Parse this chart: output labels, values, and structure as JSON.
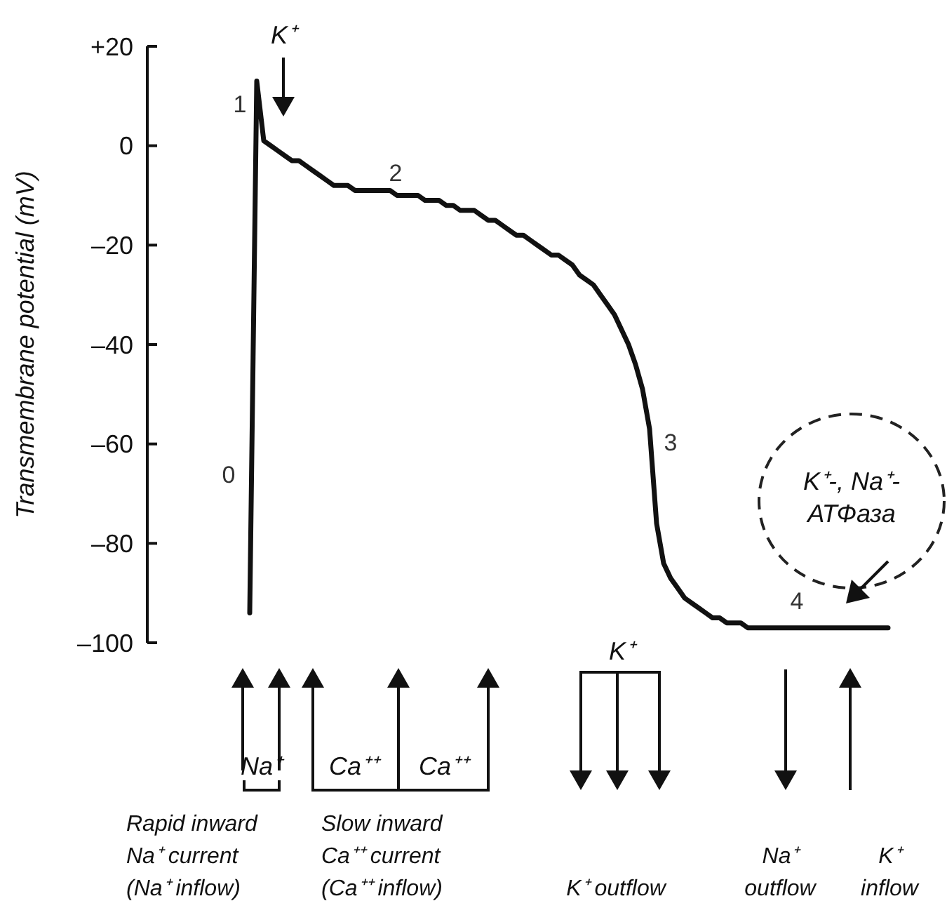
{
  "chart_data": {
    "type": "line",
    "ylabel": "Transmembrane potential (mV)",
    "ylim": [
      -100,
      20
    ],
    "yticks": [
      {
        "value": 20,
        "label": "+20"
      },
      0,
      {
        "value": -20,
        "label": "–20"
      },
      {
        "value": -40,
        "label": "–40"
      },
      {
        "value": -60,
        "label": "–60"
      },
      {
        "value": -80,
        "label": "–80"
      },
      {
        "value": -100,
        "label": "–100"
      }
    ],
    "tick_labels": "y",
    "categories": [
      null,
      null,
      null,
      null,
      null,
      null,
      null,
      null,
      null,
      null,
      null,
      null,
      null,
      null,
      null,
      null,
      null,
      null,
      null,
      null,
      null,
      null,
      null,
      null,
      null,
      null,
      null,
      null,
      null,
      null,
      null,
      null,
      null,
      null,
      null,
      null,
      null,
      null,
      null,
      null,
      null,
      null,
      null,
      null,
      null,
      null,
      null,
      null,
      null,
      null,
      null,
      null,
      null,
      null,
      null,
      null,
      null,
      null,
      null,
      null,
      null,
      null,
      null,
      null,
      null,
      null,
      null,
      null,
      null,
      null,
      null,
      null,
      null,
      null,
      null,
      null,
      null,
      null,
      null,
      null,
      null,
      null,
      null,
      null,
      null,
      null,
      null,
      null,
      null,
      null,
      null,
      null
    ],
    "series": [
      {
        "color": "#111111",
        "values": [
          -94,
          13,
          1,
          0,
          -1,
          -2,
          -3,
          -3,
          -4,
          -5,
          -6,
          -7,
          -8,
          -8,
          -8,
          -9,
          -9,
          -9,
          -9,
          -9,
          -9,
          -10,
          -10,
          -10,
          -10,
          -11,
          -11,
          -11,
          -12,
          -12,
          -13,
          -13,
          -13,
          -14,
          -15,
          -15,
          -16,
          -17,
          -18,
          -18,
          -19,
          -20,
          -21,
          -22,
          -22,
          -23,
          -24,
          -26,
          -27,
          -28,
          -30,
          -32,
          -34,
          -37,
          -40,
          -44,
          -49,
          -57,
          -76,
          -84,
          -87,
          -89,
          -91,
          -92,
          -93,
          -94,
          -95,
          -95,
          -96,
          -96,
          -96,
          -97,
          -97,
          -97,
          -97,
          -97,
          -97,
          -97,
          -97,
          -97,
          -97,
          -97,
          -97,
          -97,
          -97,
          -97,
          -97,
          -97,
          -97,
          -97,
          -97,
          -97
        ]
      }
    ],
    "annotations": [
      "0",
      "1",
      "2",
      "3",
      "4",
      "K⁺",
      "K⁺-, Na⁺-\nАТФаза",
      "Na⁺",
      "Ca⁺⁺",
      "Ca⁺⁺",
      "K⁺",
      "Rapid inward\nNa⁺ current\n(Na⁺ inflow)",
      "Slow inward\nCa⁺⁺ current\n(Ca⁺⁺ inflow)",
      "K⁺ outflow",
      "Na⁺\noutflow",
      "K⁺\ninflow"
    ]
  }
}
